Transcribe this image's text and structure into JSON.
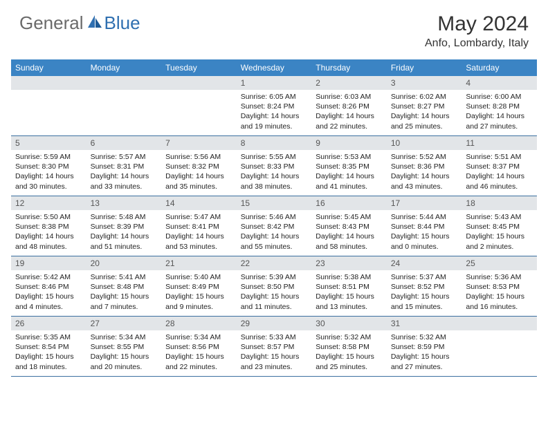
{
  "logo": {
    "general": "General",
    "blue": "Blue"
  },
  "title": "May 2024",
  "location": "Anfo, Lombardy, Italy",
  "colors": {
    "header_bg": "#3b84c4",
    "header_text": "#ffffff",
    "daynum_bg": "#e2e5e8",
    "border": "#3b6fa0",
    "logo_gray": "#6a6a6a",
    "logo_blue": "#2f6fb0"
  },
  "weekdays": [
    "Sunday",
    "Monday",
    "Tuesday",
    "Wednesday",
    "Thursday",
    "Friday",
    "Saturday"
  ],
  "weeks": [
    [
      null,
      null,
      null,
      {
        "n": "1",
        "sr": "Sunrise: 6:05 AM",
        "ss": "Sunset: 8:24 PM",
        "d1": "Daylight: 14 hours",
        "d2": "and 19 minutes."
      },
      {
        "n": "2",
        "sr": "Sunrise: 6:03 AM",
        "ss": "Sunset: 8:26 PM",
        "d1": "Daylight: 14 hours",
        "d2": "and 22 minutes."
      },
      {
        "n": "3",
        "sr": "Sunrise: 6:02 AM",
        "ss": "Sunset: 8:27 PM",
        "d1": "Daylight: 14 hours",
        "d2": "and 25 minutes."
      },
      {
        "n": "4",
        "sr": "Sunrise: 6:00 AM",
        "ss": "Sunset: 8:28 PM",
        "d1": "Daylight: 14 hours",
        "d2": "and 27 minutes."
      }
    ],
    [
      {
        "n": "5",
        "sr": "Sunrise: 5:59 AM",
        "ss": "Sunset: 8:30 PM",
        "d1": "Daylight: 14 hours",
        "d2": "and 30 minutes."
      },
      {
        "n": "6",
        "sr": "Sunrise: 5:57 AM",
        "ss": "Sunset: 8:31 PM",
        "d1": "Daylight: 14 hours",
        "d2": "and 33 minutes."
      },
      {
        "n": "7",
        "sr": "Sunrise: 5:56 AM",
        "ss": "Sunset: 8:32 PM",
        "d1": "Daylight: 14 hours",
        "d2": "and 35 minutes."
      },
      {
        "n": "8",
        "sr": "Sunrise: 5:55 AM",
        "ss": "Sunset: 8:33 PM",
        "d1": "Daylight: 14 hours",
        "d2": "and 38 minutes."
      },
      {
        "n": "9",
        "sr": "Sunrise: 5:53 AM",
        "ss": "Sunset: 8:35 PM",
        "d1": "Daylight: 14 hours",
        "d2": "and 41 minutes."
      },
      {
        "n": "10",
        "sr": "Sunrise: 5:52 AM",
        "ss": "Sunset: 8:36 PM",
        "d1": "Daylight: 14 hours",
        "d2": "and 43 minutes."
      },
      {
        "n": "11",
        "sr": "Sunrise: 5:51 AM",
        "ss": "Sunset: 8:37 PM",
        "d1": "Daylight: 14 hours",
        "d2": "and 46 minutes."
      }
    ],
    [
      {
        "n": "12",
        "sr": "Sunrise: 5:50 AM",
        "ss": "Sunset: 8:38 PM",
        "d1": "Daylight: 14 hours",
        "d2": "and 48 minutes."
      },
      {
        "n": "13",
        "sr": "Sunrise: 5:48 AM",
        "ss": "Sunset: 8:39 PM",
        "d1": "Daylight: 14 hours",
        "d2": "and 51 minutes."
      },
      {
        "n": "14",
        "sr": "Sunrise: 5:47 AM",
        "ss": "Sunset: 8:41 PM",
        "d1": "Daylight: 14 hours",
        "d2": "and 53 minutes."
      },
      {
        "n": "15",
        "sr": "Sunrise: 5:46 AM",
        "ss": "Sunset: 8:42 PM",
        "d1": "Daylight: 14 hours",
        "d2": "and 55 minutes."
      },
      {
        "n": "16",
        "sr": "Sunrise: 5:45 AM",
        "ss": "Sunset: 8:43 PM",
        "d1": "Daylight: 14 hours",
        "d2": "and 58 minutes."
      },
      {
        "n": "17",
        "sr": "Sunrise: 5:44 AM",
        "ss": "Sunset: 8:44 PM",
        "d1": "Daylight: 15 hours",
        "d2": "and 0 minutes."
      },
      {
        "n": "18",
        "sr": "Sunrise: 5:43 AM",
        "ss": "Sunset: 8:45 PM",
        "d1": "Daylight: 15 hours",
        "d2": "and 2 minutes."
      }
    ],
    [
      {
        "n": "19",
        "sr": "Sunrise: 5:42 AM",
        "ss": "Sunset: 8:46 PM",
        "d1": "Daylight: 15 hours",
        "d2": "and 4 minutes."
      },
      {
        "n": "20",
        "sr": "Sunrise: 5:41 AM",
        "ss": "Sunset: 8:48 PM",
        "d1": "Daylight: 15 hours",
        "d2": "and 7 minutes."
      },
      {
        "n": "21",
        "sr": "Sunrise: 5:40 AM",
        "ss": "Sunset: 8:49 PM",
        "d1": "Daylight: 15 hours",
        "d2": "and 9 minutes."
      },
      {
        "n": "22",
        "sr": "Sunrise: 5:39 AM",
        "ss": "Sunset: 8:50 PM",
        "d1": "Daylight: 15 hours",
        "d2": "and 11 minutes."
      },
      {
        "n": "23",
        "sr": "Sunrise: 5:38 AM",
        "ss": "Sunset: 8:51 PM",
        "d1": "Daylight: 15 hours",
        "d2": "and 13 minutes."
      },
      {
        "n": "24",
        "sr": "Sunrise: 5:37 AM",
        "ss": "Sunset: 8:52 PM",
        "d1": "Daylight: 15 hours",
        "d2": "and 15 minutes."
      },
      {
        "n": "25",
        "sr": "Sunrise: 5:36 AM",
        "ss": "Sunset: 8:53 PM",
        "d1": "Daylight: 15 hours",
        "d2": "and 16 minutes."
      }
    ],
    [
      {
        "n": "26",
        "sr": "Sunrise: 5:35 AM",
        "ss": "Sunset: 8:54 PM",
        "d1": "Daylight: 15 hours",
        "d2": "and 18 minutes."
      },
      {
        "n": "27",
        "sr": "Sunrise: 5:34 AM",
        "ss": "Sunset: 8:55 PM",
        "d1": "Daylight: 15 hours",
        "d2": "and 20 minutes."
      },
      {
        "n": "28",
        "sr": "Sunrise: 5:34 AM",
        "ss": "Sunset: 8:56 PM",
        "d1": "Daylight: 15 hours",
        "d2": "and 22 minutes."
      },
      {
        "n": "29",
        "sr": "Sunrise: 5:33 AM",
        "ss": "Sunset: 8:57 PM",
        "d1": "Daylight: 15 hours",
        "d2": "and 23 minutes."
      },
      {
        "n": "30",
        "sr": "Sunrise: 5:32 AM",
        "ss": "Sunset: 8:58 PM",
        "d1": "Daylight: 15 hours",
        "d2": "and 25 minutes."
      },
      {
        "n": "31",
        "sr": "Sunrise: 5:32 AM",
        "ss": "Sunset: 8:59 PM",
        "d1": "Daylight: 15 hours",
        "d2": "and 27 minutes."
      },
      null
    ]
  ]
}
